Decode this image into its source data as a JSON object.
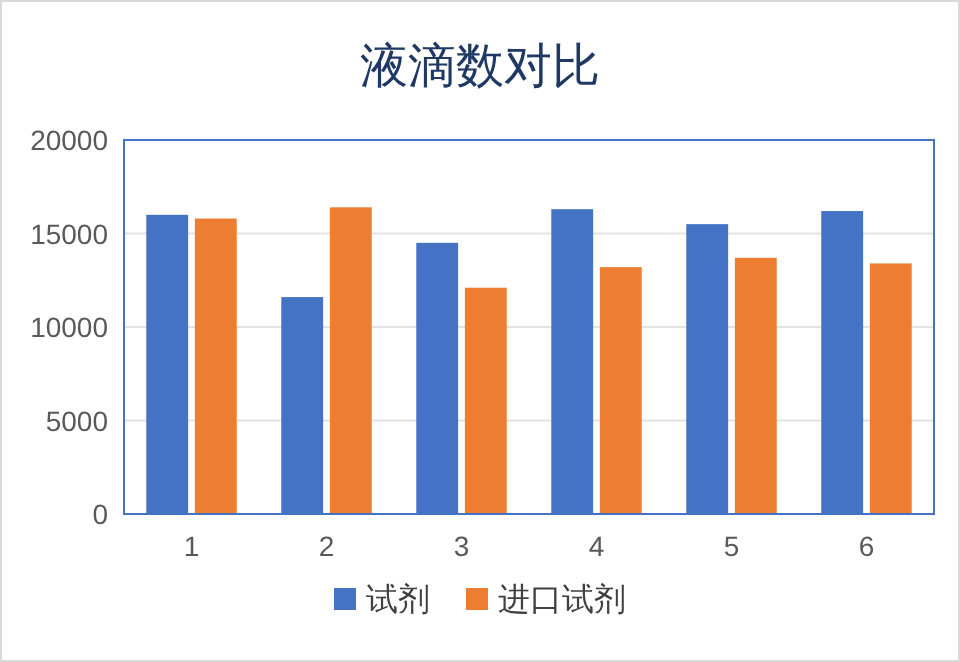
{
  "chart_data": {
    "type": "bar",
    "title": "液滴数对比",
    "categories": [
      "1",
      "2",
      "3",
      "4",
      "5",
      "6"
    ],
    "series": [
      {
        "name": "试剂",
        "color": "#4472c4",
        "values": [
          16000,
          11600,
          14500,
          16300,
          15500,
          16200
        ]
      },
      {
        "name": "进口试剂",
        "color": "#ed7d31",
        "values": [
          15800,
          16400,
          12100,
          13200,
          13700,
          13400
        ]
      }
    ],
    "ylim": [
      0,
      20000
    ],
    "yticks": [
      0,
      5000,
      10000,
      15000,
      20000
    ],
    "grid": "y",
    "legend": "bottom"
  }
}
